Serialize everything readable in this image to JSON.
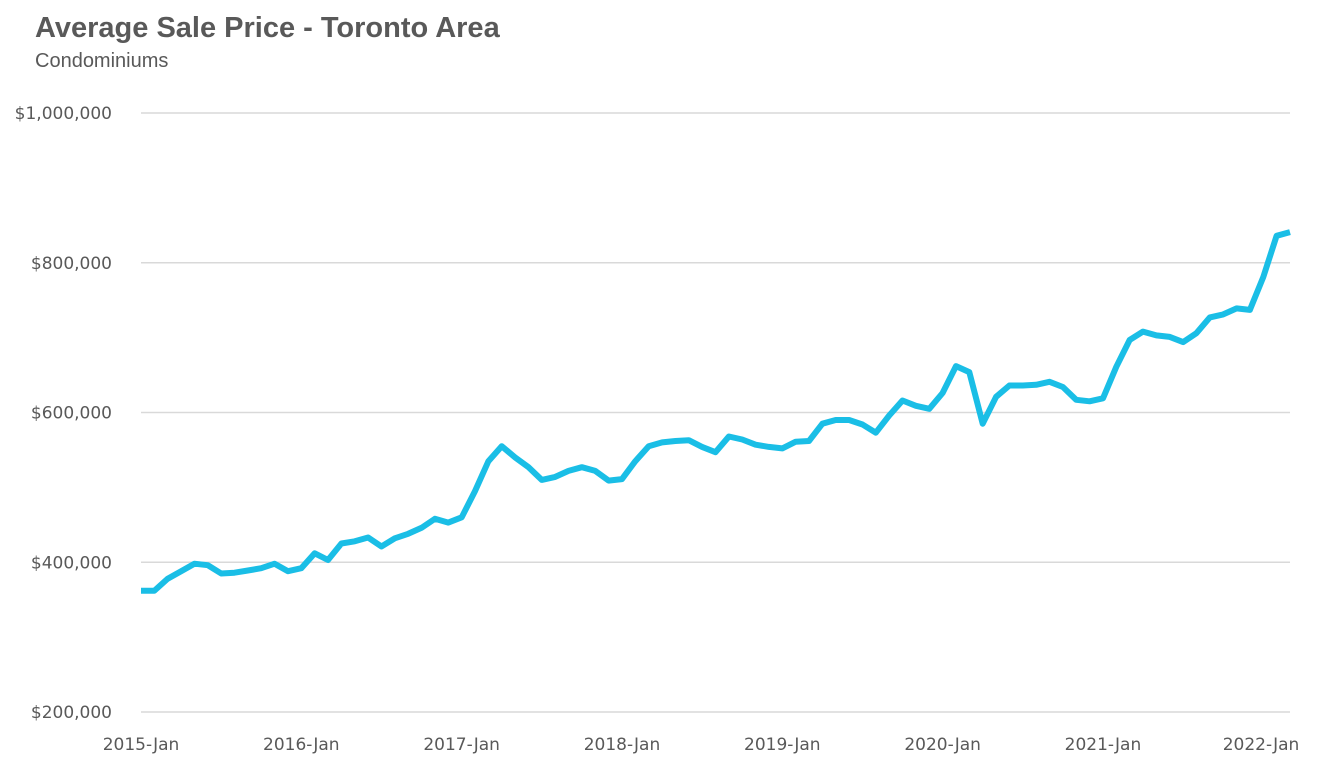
{
  "header": {
    "title": "Average Sale Price - Toronto Area",
    "subtitle": "Condominiums"
  },
  "chart_data": {
    "type": "line",
    "title": "Average Sale Price - Toronto Area",
    "subtitle": "Condominiums",
    "xlabel": "",
    "ylabel": "",
    "ylim": [
      200000,
      1000000
    ],
    "grid": true,
    "legend": "none",
    "line_color": "#1ABEE6",
    "y_ticks": [
      {
        "value": 200000,
        "label": "$200,000"
      },
      {
        "value": 400000,
        "label": "$400,000"
      },
      {
        "value": 600000,
        "label": "$600,000"
      },
      {
        "value": 800000,
        "label": "$800,000"
      },
      {
        "value": 1000000,
        "label": "$1,000,000"
      }
    ],
    "x_ticks": [
      {
        "index": 0,
        "label": "2015-Jan"
      },
      {
        "index": 12,
        "label": "2016-Jan"
      },
      {
        "index": 24,
        "label": "2017-Jan"
      },
      {
        "index": 36,
        "label": "2018-Jan"
      },
      {
        "index": 48,
        "label": "2019-Jan"
      },
      {
        "index": 60,
        "label": "2020-Jan"
      },
      {
        "index": 72,
        "label": "2021-Jan"
      },
      {
        "index": 84,
        "label": "2022-Jan"
      }
    ],
    "series": [
      {
        "name": "Condominiums",
        "values": [
          362000,
          362000,
          378000,
          388000,
          398000,
          396000,
          385000,
          386000,
          389000,
          392000,
          398000,
          388000,
          392000,
          412000,
          403000,
          425000,
          428000,
          433000,
          421000,
          432000,
          438000,
          446000,
          458000,
          453000,
          460000,
          495000,
          535000,
          555000,
          540000,
          527000,
          510000,
          514000,
          522000,
          527000,
          522000,
          509000,
          511000,
          535000,
          555000,
          560000,
          562000,
          563000,
          554000,
          547000,
          568000,
          564000,
          557000,
          554000,
          552000,
          561000,
          562000,
          585000,
          590000,
          590000,
          584000,
          573000,
          596000,
          616000,
          609000,
          605000,
          626000,
          662000,
          654000,
          585000,
          621000,
          636000,
          636000,
          637000,
          641000,
          634000,
          617000,
          615000,
          619000,
          661000,
          697000,
          708000,
          703000,
          701000,
          694000,
          706000,
          727000,
          731000,
          739000,
          737000,
          781000,
          836000,
          841000
        ]
      }
    ]
  }
}
